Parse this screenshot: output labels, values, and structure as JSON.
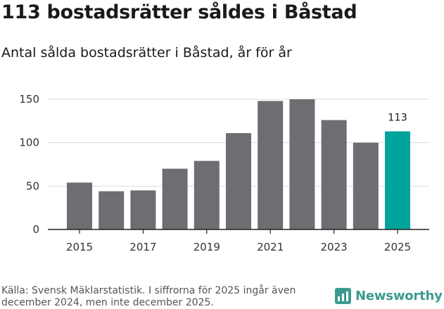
{
  "chart_data": {
    "type": "bar",
    "title": "113 bostadsrätter såldes i Båstad",
    "subtitle": "Antal sålda bostadsrätter i Båstad, år för år",
    "xlabel": "",
    "ylabel": "",
    "categories": [
      "2015",
      "2016",
      "2017",
      "2018",
      "2019",
      "2020",
      "2021",
      "2022",
      "2023",
      "2024",
      "2025"
    ],
    "values": [
      54,
      44,
      45,
      70,
      79,
      111,
      148,
      150,
      126,
      100,
      113
    ],
    "ylim": [
      0,
      150
    ],
    "yticks": [
      "0",
      "50",
      "100",
      "150"
    ],
    "xticks": [
      "2015",
      "2017",
      "2019",
      "2021",
      "2023",
      "2025"
    ],
    "highlight_index": 10,
    "highlight_label": "113",
    "grid": true,
    "legend": "none",
    "colors": {
      "bar": "#6e6d72",
      "highlight": "#00a49a",
      "grid": "#dddddd",
      "axis": "#222222"
    }
  },
  "footer": {
    "source": "Källa: Svensk Mäklarstatistik. I siffrorna för 2025 ingår även december 2024, men inte december 2025.",
    "brand": "Newsworthy",
    "brand_icon": "newsworthy-logo-icon",
    "brand_color": "#3d9a8f"
  }
}
